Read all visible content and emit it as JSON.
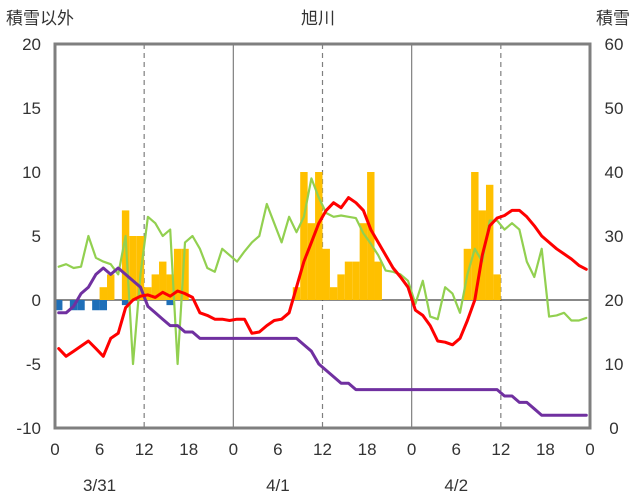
{
  "chart_data": {
    "type": "bar+line",
    "title": "旭川",
    "left_axis": {
      "label": "積雪以外",
      "min": -10,
      "max": 20,
      "ticks": [
        20,
        15,
        10,
        5,
        0,
        -5,
        -10
      ]
    },
    "right_axis": {
      "label": "積雪",
      "min": 0,
      "max": 60,
      "ticks": [
        60,
        50,
        40,
        30,
        20,
        10,
        0
      ]
    },
    "x_axis": {
      "hour_ticks": [
        "0",
        "6",
        "12",
        "18",
        "0",
        "6",
        "12",
        "18",
        "0",
        "6",
        "12",
        "18",
        "0"
      ],
      "date_labels": [
        {
          "at": 6,
          "text": "3/31"
        },
        {
          "at": 30,
          "text": "4/1"
        },
        {
          "at": 54,
          "text": "4/2"
        }
      ],
      "hours_total": 72,
      "solid_day_lines": [
        24,
        48
      ],
      "dashed_noon_lines": [
        12,
        36,
        60
      ],
      "zero_line": 0
    },
    "colors": {
      "precip": "#FFC000",
      "sunshine_negative": "#1F6FB8",
      "temperature": "#FF0000",
      "humidity_like": "#92D050",
      "snow_depth": "#7030A0",
      "frame": "#7F7F7F",
      "grid": "#7F7F7F"
    },
    "bars_precip": [
      [
        0,
        0
      ],
      [
        1,
        0
      ],
      [
        2,
        0
      ],
      [
        3,
        0
      ],
      [
        4,
        0
      ],
      [
        5,
        0
      ],
      [
        6,
        1
      ],
      [
        7,
        2
      ],
      [
        8,
        0
      ],
      [
        9,
        7
      ],
      [
        10,
        5
      ],
      [
        11,
        5
      ],
      [
        12,
        1
      ],
      [
        13,
        2
      ],
      [
        14,
        3
      ],
      [
        15,
        2
      ],
      [
        16,
        4
      ],
      [
        17,
        4
      ],
      [
        18,
        0
      ],
      [
        19,
        0
      ],
      [
        20,
        0
      ],
      [
        21,
        0
      ],
      [
        22,
        0
      ],
      [
        23,
        0
      ],
      [
        24,
        0
      ],
      [
        25,
        0
      ],
      [
        26,
        0
      ],
      [
        27,
        0
      ],
      [
        28,
        0
      ],
      [
        29,
        0
      ],
      [
        30,
        0
      ],
      [
        31,
        0
      ],
      [
        32,
        1
      ],
      [
        33,
        10
      ],
      [
        34,
        6
      ],
      [
        35,
        10
      ],
      [
        36,
        4
      ],
      [
        37,
        1
      ],
      [
        38,
        2
      ],
      [
        39,
        3
      ],
      [
        40,
        3
      ],
      [
        41,
        6
      ],
      [
        42,
        10
      ],
      [
        43,
        3
      ],
      [
        44,
        0
      ],
      [
        45,
        0
      ],
      [
        46,
        0
      ],
      [
        47,
        0
      ],
      [
        48,
        0
      ],
      [
        49,
        0
      ],
      [
        50,
        0
      ],
      [
        51,
        0
      ],
      [
        52,
        0
      ],
      [
        53,
        0
      ],
      [
        54,
        0
      ],
      [
        55,
        4
      ],
      [
        56,
        10
      ],
      [
        57,
        7
      ],
      [
        58,
        9
      ],
      [
        59,
        2
      ],
      [
        60,
        0
      ],
      [
        61,
        0
      ],
      [
        62,
        0
      ],
      [
        63,
        0
      ],
      [
        64,
        0
      ],
      [
        65,
        0
      ],
      [
        66,
        0
      ],
      [
        67,
        0
      ],
      [
        68,
        0
      ],
      [
        69,
        0
      ],
      [
        70,
        0
      ],
      [
        71,
        0
      ]
    ],
    "bars_negative": [
      [
        0,
        -0.8
      ],
      [
        1,
        0
      ],
      [
        2,
        -0.8
      ],
      [
        3,
        -0.8
      ],
      [
        4,
        0
      ],
      [
        5,
        -0.8
      ],
      [
        6,
        -0.8
      ],
      [
        7,
        0
      ],
      [
        8,
        0
      ],
      [
        9,
        -0.4
      ],
      [
        10,
        0
      ],
      [
        11,
        0
      ],
      [
        12,
        0
      ],
      [
        13,
        0
      ],
      [
        14,
        0
      ],
      [
        15,
        -0.4
      ],
      [
        16,
        0
      ],
      [
        17,
        0
      ]
    ],
    "temperature": [
      [
        0,
        -3.8
      ],
      [
        1,
        -4.4
      ],
      [
        2,
        -4
      ],
      [
        3,
        -3.6
      ],
      [
        4,
        -3.2
      ],
      [
        5,
        -3.8
      ],
      [
        6,
        -4.4
      ],
      [
        7,
        -3
      ],
      [
        8,
        -2.6
      ],
      [
        9,
        -0.6
      ],
      [
        10,
        0
      ],
      [
        11,
        0.3
      ],
      [
        12,
        0.4
      ],
      [
        13,
        0.2
      ],
      [
        14,
        0.6
      ],
      [
        15,
        0.3
      ],
      [
        16,
        0.7
      ],
      [
        17,
        0.5
      ],
      [
        18,
        0.2
      ],
      [
        19,
        -1
      ],
      [
        20,
        -1.2
      ],
      [
        21,
        -1.5
      ],
      [
        22,
        -1.5
      ],
      [
        23,
        -1.6
      ],
      [
        24,
        -1.5
      ],
      [
        25,
        -1.5
      ],
      [
        26,
        -2.6
      ],
      [
        27,
        -2.5
      ],
      [
        28,
        -2
      ],
      [
        29,
        -1.6
      ],
      [
        30,
        -1.5
      ],
      [
        31,
        -1
      ],
      [
        32,
        1
      ],
      [
        33,
        3
      ],
      [
        34,
        4.5
      ],
      [
        35,
        6
      ],
      [
        36,
        7
      ],
      [
        37,
        7.6
      ],
      [
        38,
        7.2
      ],
      [
        39,
        8
      ],
      [
        40,
        7.6
      ],
      [
        41,
        7
      ],
      [
        42,
        5.5
      ],
      [
        43,
        4.5
      ],
      [
        44,
        3.5
      ],
      [
        45,
        2.5
      ],
      [
        46,
        1.8
      ],
      [
        47,
        1
      ],
      [
        48,
        -0.8
      ],
      [
        49,
        -1.2
      ],
      [
        50,
        -2
      ],
      [
        51,
        -3.2
      ],
      [
        52,
        -3.3
      ],
      [
        53,
        -3.5
      ],
      [
        54,
        -3
      ],
      [
        55,
        -1.6
      ],
      [
        56,
        0
      ],
      [
        57,
        3.5
      ],
      [
        58,
        5.8
      ],
      [
        59,
        6.4
      ],
      [
        60,
        6.6
      ],
      [
        61,
        7
      ],
      [
        62,
        7
      ],
      [
        63,
        6.5
      ],
      [
        64,
        5.8
      ],
      [
        65,
        5
      ],
      [
        66,
        4.5
      ],
      [
        67,
        4
      ],
      [
        68,
        3.6
      ],
      [
        69,
        3.2
      ],
      [
        70,
        2.7
      ],
      [
        71,
        2.4
      ]
    ],
    "humidity_like": [
      [
        0,
        2.6
      ],
      [
        1,
        2.8
      ],
      [
        2,
        2.5
      ],
      [
        3,
        2.6
      ],
      [
        4,
        5
      ],
      [
        5,
        3.3
      ],
      [
        6,
        3
      ],
      [
        7,
        2.8
      ],
      [
        8,
        2
      ],
      [
        9,
        5
      ],
      [
        10,
        -5
      ],
      [
        11,
        2
      ],
      [
        12,
        6.5
      ],
      [
        13,
        6
      ],
      [
        14,
        5
      ],
      [
        15,
        5.5
      ],
      [
        16,
        -5
      ],
      [
        17,
        4.5
      ],
      [
        18,
        5
      ],
      [
        19,
        4
      ],
      [
        20,
        2.5
      ],
      [
        21,
        2.2
      ],
      [
        22,
        4
      ],
      [
        23,
        3.5
      ],
      [
        24,
        3
      ],
      [
        25,
        3.8
      ],
      [
        26,
        4.5
      ],
      [
        27,
        5
      ],
      [
        28,
        7.5
      ],
      [
        29,
        6
      ],
      [
        30,
        4.5
      ],
      [
        31,
        6.5
      ],
      [
        32,
        5.3
      ],
      [
        33,
        6.5
      ],
      [
        34,
        9.5
      ],
      [
        35,
        8
      ],
      [
        36,
        6.8
      ],
      [
        37,
        6.5
      ],
      [
        38,
        6.6
      ],
      [
        39,
        6.5
      ],
      [
        40,
        6.4
      ],
      [
        41,
        5.2
      ],
      [
        42,
        4.4
      ],
      [
        43,
        3.5
      ],
      [
        44,
        2.3
      ],
      [
        45,
        2.2
      ],
      [
        46,
        2
      ],
      [
        47,
        1.5
      ],
      [
        48,
        -0.3
      ],
      [
        49,
        1.5
      ],
      [
        50,
        -1.3
      ],
      [
        51,
        -1.5
      ],
      [
        52,
        1
      ],
      [
        53,
        0.5
      ],
      [
        54,
        -1
      ],
      [
        55,
        2
      ],
      [
        56,
        4
      ],
      [
        57,
        3
      ],
      [
        58,
        6.2
      ],
      [
        59,
        6.2
      ],
      [
        60,
        5.5
      ],
      [
        61,
        6
      ],
      [
        62,
        5.5
      ],
      [
        63,
        3
      ],
      [
        64,
        1.8
      ],
      [
        65,
        4
      ],
      [
        66,
        -1.3
      ],
      [
        67,
        -1.2
      ],
      [
        68,
        -1
      ],
      [
        69,
        -1.6
      ],
      [
        70,
        -1.6
      ],
      [
        71,
        -1.4
      ]
    ],
    "snow_depth_right": [
      [
        0,
        18
      ],
      [
        1,
        18
      ],
      [
        2,
        19
      ],
      [
        3,
        21
      ],
      [
        4,
        22
      ],
      [
        5,
        24
      ],
      [
        6,
        25
      ],
      [
        7,
        24
      ],
      [
        8,
        25
      ],
      [
        9,
        24
      ],
      [
        10,
        23
      ],
      [
        11,
        22
      ],
      [
        12,
        19
      ],
      [
        13,
        18
      ],
      [
        14,
        17
      ],
      [
        15,
        16
      ],
      [
        16,
        16
      ],
      [
        17,
        15
      ],
      [
        18,
        15
      ],
      [
        19,
        14
      ],
      [
        20,
        14
      ],
      [
        21,
        14
      ],
      [
        22,
        14
      ],
      [
        23,
        14
      ],
      [
        24,
        14
      ],
      [
        25,
        14
      ],
      [
        26,
        14
      ],
      [
        27,
        14
      ],
      [
        28,
        14
      ],
      [
        29,
        14
      ],
      [
        30,
        14
      ],
      [
        31,
        14
      ],
      [
        32,
        14
      ],
      [
        33,
        13
      ],
      [
        34,
        12
      ],
      [
        35,
        10
      ],
      [
        36,
        9
      ],
      [
        37,
        8
      ],
      [
        38,
        7
      ],
      [
        39,
        7
      ],
      [
        40,
        6
      ],
      [
        41,
        6
      ],
      [
        42,
        6
      ],
      [
        43,
        6
      ],
      [
        44,
        6
      ],
      [
        45,
        6
      ],
      [
        46,
        6
      ],
      [
        47,
        6
      ],
      [
        48,
        6
      ],
      [
        49,
        6
      ],
      [
        50,
        6
      ],
      [
        51,
        6
      ],
      [
        52,
        6
      ],
      [
        53,
        6
      ],
      [
        54,
        6
      ],
      [
        55,
        6
      ],
      [
        56,
        6
      ],
      [
        57,
        6
      ],
      [
        58,
        6
      ],
      [
        59,
        6
      ],
      [
        60,
        5
      ],
      [
        61,
        5
      ],
      [
        62,
        4
      ],
      [
        63,
        4
      ],
      [
        64,
        3
      ],
      [
        65,
        2
      ],
      [
        66,
        2
      ],
      [
        67,
        2
      ],
      [
        68,
        2
      ],
      [
        69,
        2
      ],
      [
        70,
        2
      ],
      [
        71,
        2
      ]
    ]
  }
}
